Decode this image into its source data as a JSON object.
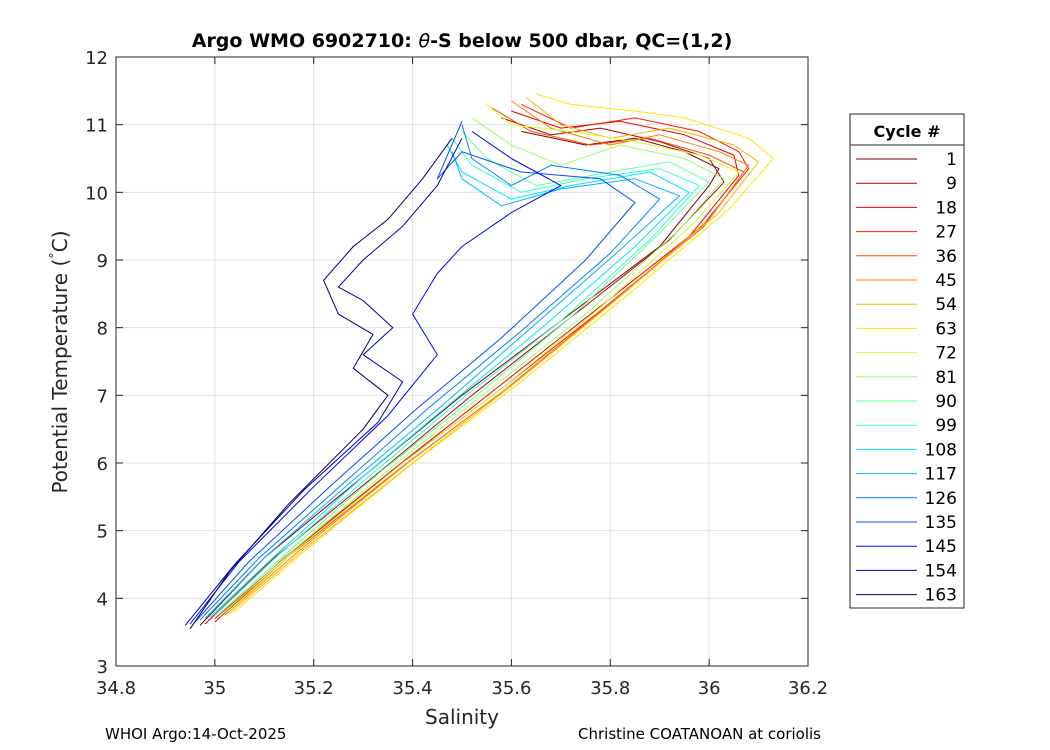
{
  "chart_data": {
    "type": "line",
    "title_parts": [
      "Argo WMO 6902710: ",
      "θ",
      "-S below 500 dbar,  QC=(1,2)"
    ],
    "xlabel": "Salinity",
    "ylabel_parts": [
      "Potential Temperature (",
      "°",
      "C)"
    ],
    "xlim": [
      34.8,
      36.2
    ],
    "ylim": [
      3,
      12
    ],
    "xticks": [
      34.8,
      35,
      35.2,
      35.4,
      35.6,
      35.8,
      36,
      36.2
    ],
    "xtick_labels": [
      "34.8",
      "35",
      "35.2",
      "35.4",
      "35.6",
      "35.8",
      "36",
      "36.2"
    ],
    "yticks": [
      3,
      4,
      5,
      6,
      7,
      8,
      9,
      10,
      11,
      12
    ],
    "ytick_labels": [
      "3",
      "4",
      "5",
      "6",
      "7",
      "8",
      "9",
      "10",
      "11",
      "12"
    ],
    "grid": true,
    "legend_title": "Cycle #",
    "legend_position": "outside-right",
    "cycles": [
      1,
      9,
      18,
      27,
      36,
      45,
      54,
      63,
      72,
      81,
      90,
      99,
      108,
      117,
      126,
      135,
      145,
      154,
      163
    ],
    "series": [
      {
        "name": "1",
        "color": "#800000",
        "values": [
          [
            34.97,
            3.6
          ],
          [
            35.1,
            4.6
          ],
          [
            35.3,
            5.8
          ],
          [
            35.5,
            7.0
          ],
          [
            35.7,
            8.1
          ],
          [
            35.9,
            9.2
          ],
          [
            36.0,
            10.1
          ],
          [
            36.02,
            10.35
          ],
          [
            35.95,
            10.6
          ],
          [
            35.85,
            10.8
          ],
          [
            35.75,
            10.7
          ],
          [
            35.62,
            10.9
          ]
        ]
      },
      {
        "name": "9",
        "color": "#b30000",
        "values": [
          [
            34.98,
            3.62
          ],
          [
            35.12,
            4.6
          ],
          [
            35.33,
            5.85
          ],
          [
            35.52,
            7.0
          ],
          [
            35.72,
            8.15
          ],
          [
            35.92,
            9.3
          ],
          [
            36.03,
            10.15
          ],
          [
            36.0,
            10.5
          ],
          [
            35.9,
            10.75
          ],
          [
            35.78,
            10.95
          ],
          [
            35.68,
            10.85
          ],
          [
            35.58,
            11.1
          ]
        ]
      },
      {
        "name": "18",
        "color": "#e60000",
        "values": [
          [
            35.0,
            3.65
          ],
          [
            35.14,
            4.6
          ],
          [
            35.36,
            5.9
          ],
          [
            35.56,
            7.05
          ],
          [
            35.76,
            8.2
          ],
          [
            35.96,
            9.35
          ],
          [
            36.06,
            10.25
          ],
          [
            36.05,
            10.55
          ],
          [
            35.95,
            10.85
          ],
          [
            35.82,
            11.05
          ],
          [
            35.7,
            10.95
          ],
          [
            35.6,
            11.2
          ]
        ]
      },
      {
        "name": "27",
        "color": "#ff1a00",
        "values": [
          [
            35.0,
            3.7
          ],
          [
            35.15,
            4.65
          ],
          [
            35.37,
            5.95
          ],
          [
            35.58,
            7.1
          ],
          [
            35.78,
            8.25
          ],
          [
            35.98,
            9.45
          ],
          [
            36.08,
            10.35
          ],
          [
            36.06,
            10.6
          ],
          [
            35.98,
            10.9
          ],
          [
            35.85,
            11.1
          ],
          [
            35.72,
            10.95
          ],
          [
            35.62,
            11.3
          ]
        ]
      },
      {
        "name": "36",
        "color": "#ff4d00",
        "values": [
          [
            35.01,
            3.72
          ],
          [
            35.16,
            4.68
          ],
          [
            35.38,
            5.95
          ],
          [
            35.59,
            7.1
          ],
          [
            35.79,
            8.3
          ],
          [
            35.99,
            9.5
          ],
          [
            36.07,
            10.3
          ],
          [
            36.0,
            10.55
          ],
          [
            35.88,
            10.8
          ],
          [
            35.76,
            10.7
          ],
          [
            35.64,
            10.9
          ],
          [
            35.56,
            11.25
          ]
        ]
      },
      {
        "name": "45",
        "color": "#ff8000",
        "values": [
          [
            35.02,
            3.75
          ],
          [
            35.17,
            4.7
          ],
          [
            35.39,
            6.0
          ],
          [
            35.6,
            7.15
          ],
          [
            35.8,
            8.35
          ],
          [
            36.0,
            9.6
          ],
          [
            36.08,
            10.4
          ],
          [
            36.02,
            10.6
          ],
          [
            35.9,
            10.85
          ],
          [
            35.8,
            10.7
          ],
          [
            35.68,
            10.95
          ],
          [
            35.6,
            11.35
          ]
        ]
      },
      {
        "name": "54",
        "color": "#ffb300",
        "values": [
          [
            35.03,
            3.78
          ],
          [
            35.18,
            4.72
          ],
          [
            35.4,
            6.0
          ],
          [
            35.61,
            7.2
          ],
          [
            35.81,
            8.4
          ],
          [
            36.02,
            9.7
          ],
          [
            36.1,
            10.45
          ],
          [
            36.05,
            10.7
          ],
          [
            35.92,
            10.95
          ],
          [
            35.8,
            10.8
          ],
          [
            35.7,
            11.0
          ],
          [
            35.63,
            11.4
          ]
        ]
      },
      {
        "name": "63",
        "color": "#ffe600",
        "values": [
          [
            35.04,
            3.8
          ],
          [
            35.19,
            4.75
          ],
          [
            35.41,
            6.05
          ],
          [
            35.62,
            7.2
          ],
          [
            35.83,
            8.45
          ],
          [
            36.04,
            9.75
          ],
          [
            36.13,
            10.5
          ],
          [
            36.08,
            10.8
          ],
          [
            35.95,
            11.1
          ],
          [
            35.85,
            11.2
          ],
          [
            35.72,
            11.3
          ],
          [
            35.65,
            11.45
          ]
        ]
      },
      {
        "name": "72",
        "color": "#ccff33",
        "values": [
          [
            35.03,
            3.82
          ],
          [
            35.17,
            4.75
          ],
          [
            35.38,
            6.0
          ],
          [
            35.58,
            7.1
          ],
          [
            35.78,
            8.3
          ],
          [
            35.97,
            9.55
          ],
          [
            36.06,
            10.3
          ],
          [
            35.98,
            10.55
          ],
          [
            35.85,
            10.75
          ],
          [
            35.72,
            10.9
          ],
          [
            35.6,
            11.0
          ],
          [
            35.55,
            11.3
          ]
        ]
      },
      {
        "name": "81",
        "color": "#99ff66",
        "values": [
          [
            35.02,
            3.8
          ],
          [
            35.16,
            4.72
          ],
          [
            35.36,
            5.95
          ],
          [
            35.55,
            7.05
          ],
          [
            35.75,
            8.2
          ],
          [
            35.94,
            9.45
          ],
          [
            36.03,
            10.2
          ],
          [
            35.95,
            10.5
          ],
          [
            35.82,
            10.7
          ],
          [
            35.7,
            10.4
          ],
          [
            35.6,
            10.7
          ],
          [
            35.52,
            11.1
          ]
        ]
      },
      {
        "name": "90",
        "color": "#66ff99",
        "values": [
          [
            35.01,
            3.78
          ],
          [
            35.15,
            4.7
          ],
          [
            35.34,
            5.9
          ],
          [
            35.53,
            7.0
          ],
          [
            35.72,
            8.15
          ],
          [
            35.9,
            9.4
          ],
          [
            36.0,
            10.15
          ],
          [
            35.92,
            10.45
          ],
          [
            35.8,
            10.3
          ],
          [
            35.65,
            10.1
          ],
          [
            35.55,
            10.5
          ],
          [
            35.5,
            10.9
          ]
        ]
      },
      {
        "name": "99",
        "color": "#33ffcc",
        "values": [
          [
            35.0,
            3.75
          ],
          [
            35.13,
            4.65
          ],
          [
            35.32,
            5.85
          ],
          [
            35.5,
            6.95
          ],
          [
            35.7,
            8.1
          ],
          [
            35.88,
            9.3
          ],
          [
            35.98,
            10.1
          ],
          [
            35.9,
            10.35
          ],
          [
            35.75,
            10.2
          ],
          [
            35.62,
            10.0
          ],
          [
            35.52,
            10.4
          ],
          [
            35.48,
            10.8
          ]
        ]
      },
      {
        "name": "108",
        "color": "#00e6ff",
        "values": [
          [
            34.99,
            3.72
          ],
          [
            35.12,
            4.62
          ],
          [
            35.3,
            5.8
          ],
          [
            35.48,
            6.9
          ],
          [
            35.67,
            8.05
          ],
          [
            35.85,
            9.2
          ],
          [
            35.96,
            10.0
          ],
          [
            35.88,
            10.3
          ],
          [
            35.72,
            10.1
          ],
          [
            35.6,
            9.9
          ],
          [
            35.5,
            10.3
          ],
          [
            35.47,
            10.7
          ]
        ]
      },
      {
        "name": "117",
        "color": "#00b3ff",
        "values": [
          [
            34.98,
            3.7
          ],
          [
            35.1,
            4.6
          ],
          [
            35.28,
            5.75
          ],
          [
            35.46,
            6.85
          ],
          [
            35.64,
            8.0
          ],
          [
            35.82,
            9.15
          ],
          [
            35.94,
            9.95
          ],
          [
            35.85,
            10.2
          ],
          [
            35.7,
            10.05
          ],
          [
            35.58,
            9.8
          ],
          [
            35.5,
            10.2
          ],
          [
            35.48,
            10.6
          ]
        ]
      },
      {
        "name": "126",
        "color": "#0080ff",
        "values": [
          [
            34.97,
            3.68
          ],
          [
            35.09,
            4.6
          ],
          [
            35.26,
            5.7
          ],
          [
            35.43,
            6.8
          ],
          [
            35.62,
            7.95
          ],
          [
            35.8,
            9.1
          ],
          [
            35.9,
            9.9
          ],
          [
            35.82,
            10.25
          ],
          [
            35.68,
            10.4
          ],
          [
            35.6,
            10.1
          ],
          [
            35.52,
            10.5
          ],
          [
            35.5,
            11.0
          ]
        ]
      },
      {
        "name": "135",
        "color": "#004dff",
        "values": [
          [
            34.96,
            3.65
          ],
          [
            35.07,
            4.55
          ],
          [
            35.24,
            5.7
          ],
          [
            35.4,
            6.75
          ],
          [
            35.58,
            7.85
          ],
          [
            35.75,
            9.0
          ],
          [
            35.85,
            9.85
          ],
          [
            35.78,
            10.2
          ],
          [
            35.62,
            10.3
          ],
          [
            35.5,
            10.6
          ],
          [
            35.45,
            10.2
          ],
          [
            35.5,
            11.05
          ]
        ]
      },
      {
        "name": "145",
        "color": "#0000ff",
        "values": [
          [
            34.95,
            3.62
          ],
          [
            35.05,
            4.55
          ],
          [
            35.2,
            5.65
          ],
          [
            35.35,
            6.7
          ],
          [
            35.45,
            7.6
          ],
          [
            35.4,
            8.2
          ],
          [
            35.45,
            8.8
          ],
          [
            35.5,
            9.2
          ],
          [
            35.6,
            9.7
          ],
          [
            35.7,
            10.1
          ],
          [
            35.6,
            10.5
          ],
          [
            35.52,
            10.9
          ]
        ]
      },
      {
        "name": "154",
        "color": "#0000b3",
        "values": [
          [
            34.94,
            3.6
          ],
          [
            35.04,
            4.5
          ],
          [
            35.18,
            5.6
          ],
          [
            35.33,
            6.6
          ],
          [
            35.38,
            7.2
          ],
          [
            35.3,
            7.6
          ],
          [
            35.36,
            8.0
          ],
          [
            35.3,
            8.4
          ],
          [
            35.25,
            8.6
          ],
          [
            35.3,
            9.0
          ],
          [
            35.38,
            9.5
          ],
          [
            35.45,
            10.1
          ],
          [
            35.5,
            10.8
          ]
        ]
      },
      {
        "name": "163",
        "color": "#000066",
        "values": [
          [
            34.95,
            3.55
          ],
          [
            35.03,
            4.4
          ],
          [
            35.15,
            5.4
          ],
          [
            35.3,
            6.5
          ],
          [
            35.35,
            7.0
          ],
          [
            35.28,
            7.4
          ],
          [
            35.32,
            7.9
          ],
          [
            35.25,
            8.2
          ],
          [
            35.22,
            8.7
          ],
          [
            35.28,
            9.2
          ],
          [
            35.35,
            9.6
          ],
          [
            35.42,
            10.2
          ],
          [
            35.48,
            10.8
          ]
        ]
      }
    ]
  },
  "footer": {
    "left": "WHOI Argo:14-Oct-2025",
    "right": "Christine COATANOAN at coriolis"
  }
}
